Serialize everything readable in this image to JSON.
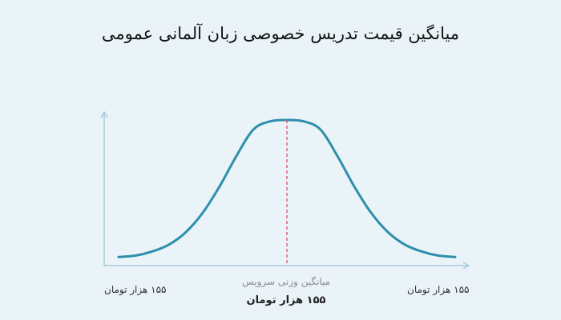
{
  "chart_data": {
    "type": "line",
    "title": "میانگین قیمت تدریس خصوصی زبان آلمانی عمومی",
    "xlabel": "",
    "ylabel": "",
    "grid": false,
    "series": [
      {
        "x": [
          0,
          0.05,
          0.1,
          0.15,
          0.2,
          0.25,
          0.3,
          0.35,
          0.4,
          0.45,
          0.5,
          0.55,
          0.6,
          0.65,
          0.7,
          0.75,
          0.8,
          0.85,
          0.9,
          0.95,
          1
        ],
        "values": [
          0.01,
          0.02,
          0.05,
          0.1,
          0.19,
          0.33,
          0.52,
          0.74,
          0.93,
          0.99,
          1.0,
          0.99,
          0.93,
          0.74,
          0.52,
          0.33,
          0.19,
          0.1,
          0.05,
          0.02,
          0.01
        ]
      }
    ],
    "mean_marker": {
      "x": 0.5,
      "color": "#e0405a"
    },
    "annotations": {
      "min_label": "۱۵۵ هزار تومان",
      "max_label": "۱۵۵ هزار تومان",
      "center_caption": "میانگین وزنی سرویس",
      "center_value": "۱۵۵ هزار تومان"
    },
    "colors": {
      "curve": "#2e8fac",
      "axis": "#a9cbd9",
      "background": "#eaf3f8"
    }
  }
}
